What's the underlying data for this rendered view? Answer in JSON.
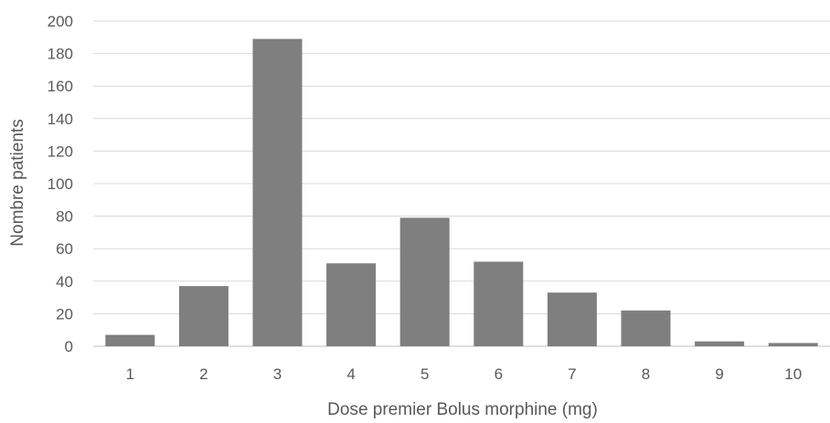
{
  "chart_data": {
    "type": "bar",
    "title": "",
    "xlabel": "Dose premier Bolus  morphine (mg)",
    "ylabel": "Nombre patients",
    "categories": [
      "1",
      "2",
      "3",
      "4",
      "5",
      "6",
      "7",
      "8",
      "9",
      "10"
    ],
    "values": [
      7,
      37,
      189,
      51,
      79,
      52,
      33,
      22,
      3,
      2
    ],
    "ylim": [
      0,
      200
    ],
    "yticks": [
      "0",
      "20",
      "40",
      "60",
      "80",
      "100",
      "120",
      "140",
      "160",
      "180",
      "200"
    ],
    "grid": true,
    "legend": "none",
    "bar_color": "#7f7f7f"
  }
}
